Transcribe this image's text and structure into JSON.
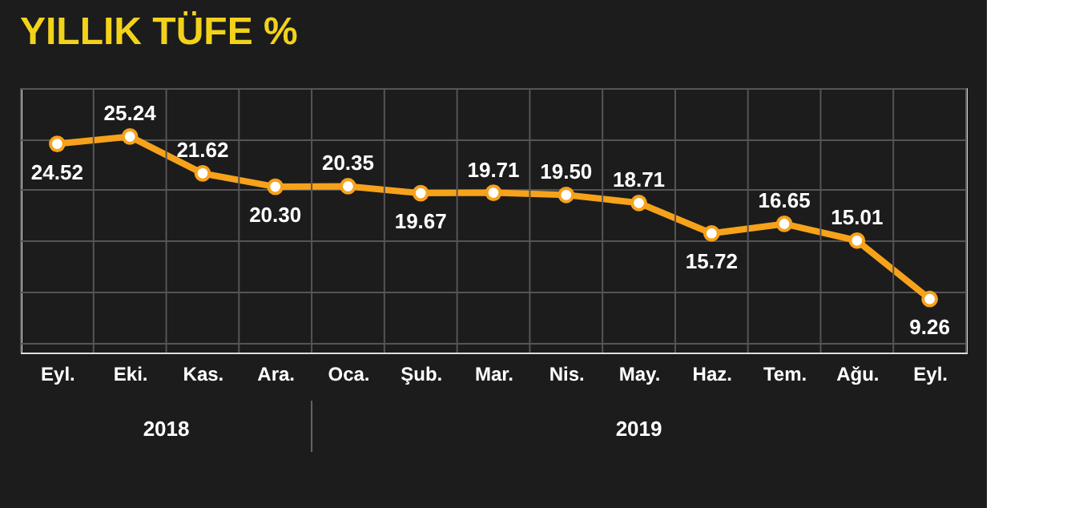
{
  "chart_data": {
    "type": "line",
    "title": "YILLIK TÜFE %",
    "categories": [
      "Eyl.",
      "Eki.",
      "Kas.",
      "Ara.",
      "Oca.",
      "Şub.",
      "Mar.",
      "Nis.",
      "May.",
      "Haz.",
      "Tem.",
      "Ağu.",
      "Eyl."
    ],
    "series": [
      {
        "color": "#f7a21b",
        "line_style": "solid",
        "values": [
          24.52,
          25.24,
          21.62,
          20.3,
          20.35,
          19.67,
          19.71,
          19.5,
          18.71,
          15.72,
          16.65,
          15.01,
          9.26
        ],
        "value_labels": [
          "24.52",
          "25.24",
          "21.62",
          "20.30",
          "20.35",
          "19.67",
          "19.71",
          "19.50",
          "18.71",
          "15.72",
          "16.65",
          "15.01",
          "9.26"
        ]
      }
    ],
    "annotations": [
      "2018",
      "2019"
    ],
    "marker": "circle",
    "grid": true,
    "tick_labels": "x"
  }
}
